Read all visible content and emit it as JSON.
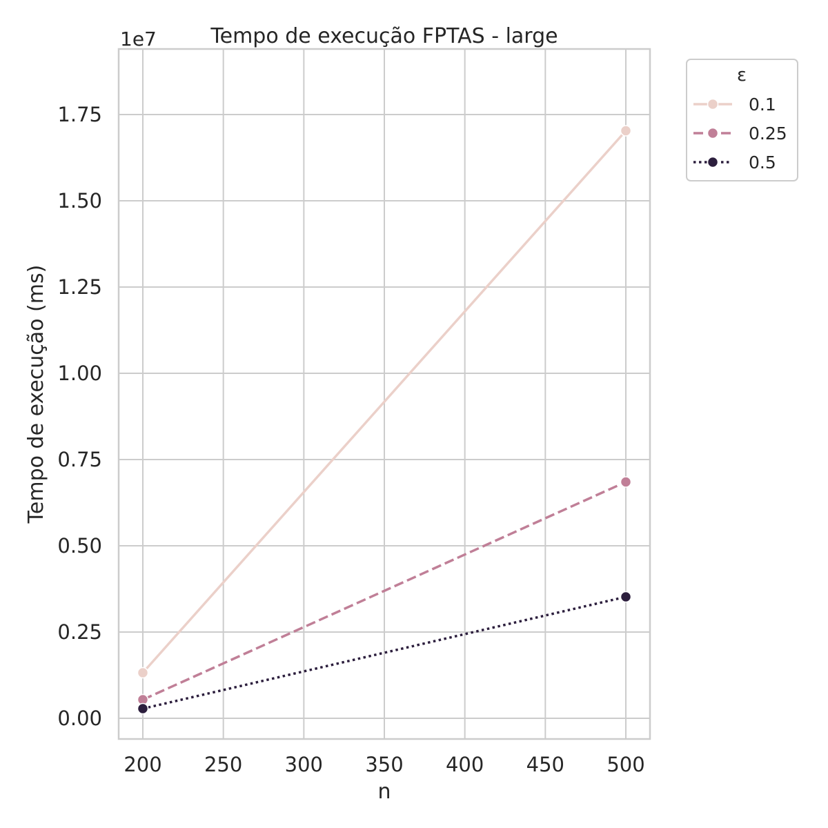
{
  "chart_data": {
    "type": "line",
    "title": "Tempo de execução FPTAS - large",
    "xlabel": "n",
    "ylabel": "Tempo de execução (ms)",
    "y_offset_label": "1e7",
    "x": [
      200,
      500
    ],
    "xlim": [
      185,
      515
    ],
    "ylim": [
      -0.06,
      1.94
    ],
    "x_ticks": [
      200,
      250,
      300,
      350,
      400,
      450,
      500
    ],
    "y_ticks": [
      0.0,
      0.25,
      0.5,
      0.75,
      1.0,
      1.25,
      1.5,
      1.75
    ],
    "y_tick_labels": [
      "0.00",
      "0.25",
      "0.50",
      "0.75",
      "1.00",
      "1.25",
      "1.50",
      "1.75"
    ],
    "y_unit_scale": 10000000,
    "grid": true,
    "legend": {
      "title": "ε",
      "placement": "outside-top-right"
    },
    "series": [
      {
        "name": "0.1",
        "values": [
          0.132,
          1.703
        ],
        "color": "#ebd0c9",
        "dash": "solid",
        "marker": "circle"
      },
      {
        "name": "0.25",
        "values": [
          0.054,
          0.685
        ],
        "color": "#c07f97",
        "dash": "dashed",
        "marker": "circle"
      },
      {
        "name": "0.5",
        "values": [
          0.028,
          0.352
        ],
        "color": "#2c1e3d",
        "dash": "dotted",
        "marker": "circle"
      }
    ]
  }
}
